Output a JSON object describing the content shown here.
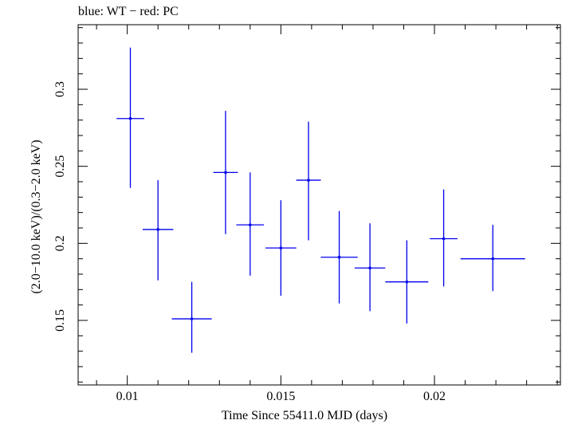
{
  "chart_data": {
    "type": "scatter",
    "title": "blue: WT − red: PC",
    "xlabel": "Time Since 55411.0 MJD (days)",
    "ylabel": "(2.0−10.0 keV)/(0.3−2.0 keV)",
    "xlim": [
      0.0084,
      0.0241
    ],
    "ylim": [
      0.1081,
      0.3419
    ],
    "x_ticks": [
      {
        "value": 0.01,
        "label": "0.01"
      },
      {
        "value": 0.015,
        "label": "0.015"
      },
      {
        "value": 0.02,
        "label": "0.02"
      }
    ],
    "y_ticks": [
      {
        "value": 0.15,
        "label": "0.15"
      },
      {
        "value": 0.2,
        "label": "0.2"
      },
      {
        "value": 0.25,
        "label": "0.25"
      },
      {
        "value": 0.3,
        "label": "0.3"
      }
    ],
    "series": [
      {
        "color": "#0000ee",
        "points": [
          {
            "x": 0.0101,
            "xerr": 0.00045,
            "y": 0.281,
            "ylo": 0.236,
            "yhi": 0.327
          },
          {
            "x": 0.011,
            "xerr": 0.0005,
            "y": 0.209,
            "ylo": 0.176,
            "yhi": 0.241
          },
          {
            "x": 0.0121,
            "xerr": 0.00065,
            "y": 0.151,
            "ylo": 0.129,
            "yhi": 0.175
          },
          {
            "x": 0.0132,
            "xerr": 0.0004,
            "y": 0.246,
            "ylo": 0.206,
            "yhi": 0.286
          },
          {
            "x": 0.014,
            "xerr": 0.00045,
            "y": 0.212,
            "ylo": 0.179,
            "yhi": 0.246
          },
          {
            "x": 0.015,
            "xerr": 0.0005,
            "y": 0.197,
            "ylo": 0.166,
            "yhi": 0.228
          },
          {
            "x": 0.0159,
            "xerr": 0.0004,
            "y": 0.241,
            "ylo": 0.202,
            "yhi": 0.279
          },
          {
            "x": 0.0169,
            "xerr": 0.0006,
            "y": 0.191,
            "ylo": 0.161,
            "yhi": 0.221
          },
          {
            "x": 0.0179,
            "xerr": 0.0005,
            "y": 0.184,
            "ylo": 0.156,
            "yhi": 0.213
          },
          {
            "x": 0.0191,
            "xerr": 0.0007,
            "y": 0.175,
            "ylo": 0.148,
            "yhi": 0.202
          },
          {
            "x": 0.0203,
            "xerr": 0.00045,
            "y": 0.203,
            "ylo": 0.172,
            "yhi": 0.235
          },
          {
            "x": 0.0219,
            "xerr": 0.00105,
            "y": 0.19,
            "ylo": 0.169,
            "yhi": 0.212
          }
        ]
      }
    ]
  }
}
